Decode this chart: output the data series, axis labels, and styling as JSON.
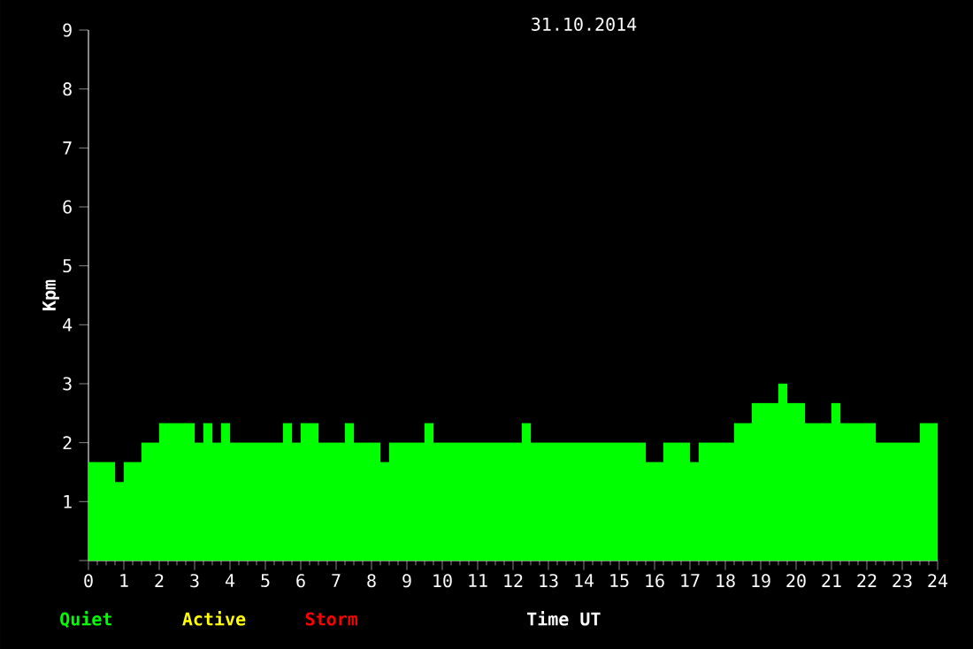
{
  "chart_data": {
    "type": "step",
    "title": "31.10.2014",
    "xlabel": "Time UT",
    "ylabel": "Kpm",
    "x": [
      0.125,
      0.375,
      0.625,
      0.875,
      1.125,
      1.375,
      1.625,
      1.875,
      2.125,
      2.375,
      2.625,
      2.875,
      3.125,
      3.375,
      3.625,
      3.875,
      4.125,
      4.375,
      4.625,
      4.875,
      5.125,
      5.375,
      5.625,
      5.875,
      6.125,
      6.375,
      6.625,
      6.875,
      7.125,
      7.375,
      7.625,
      7.875,
      8.125,
      8.375,
      8.625,
      8.875,
      9.125,
      9.375,
      9.625,
      9.875,
      10.125,
      10.375,
      10.625,
      10.875,
      11.125,
      11.375,
      11.625,
      11.875,
      12.125,
      12.375,
      12.625,
      12.875,
      13.125,
      13.375,
      13.625,
      13.875,
      14.125,
      14.375,
      14.625,
      14.875,
      15.125,
      15.375,
      15.625,
      15.875,
      16.125,
      16.375,
      16.625,
      16.875,
      17.125,
      17.375,
      17.625,
      17.875,
      18.125,
      18.375,
      18.625,
      18.875,
      19.125,
      19.375,
      19.625,
      19.875,
      20.125,
      20.375,
      20.625,
      20.875,
      21.125,
      21.375,
      21.625,
      21.875,
      22.125,
      22.375,
      22.625,
      22.875,
      23.125,
      23.375,
      23.625,
      23.875
    ],
    "series": [
      {
        "name": "Quiet",
        "type": "area",
        "color": "#00ff00",
        "values": [
          1.67,
          1.67,
          1.67,
          1.33,
          1.67,
          1.67,
          2,
          2,
          2.33,
          2.33,
          2.33,
          2.33,
          2,
          2.33,
          2,
          2.33,
          2,
          2,
          2,
          2,
          2,
          2,
          2.33,
          2,
          2.33,
          2.33,
          2,
          2,
          2,
          2.33,
          2,
          2,
          2,
          1.67,
          2,
          2,
          2,
          2,
          2.33,
          2,
          2,
          2,
          2,
          2,
          2,
          2,
          2,
          2,
          2,
          2.33,
          2,
          2,
          2,
          2,
          2,
          2,
          2,
          2,
          2,
          2,
          2,
          2,
          2,
          1.67,
          1.67,
          2,
          2,
          2,
          1.67,
          2,
          2,
          2,
          2,
          2.33,
          2.33,
          2.67,
          2.67,
          2.67,
          3,
          2.67,
          2.67,
          2.33,
          2.33,
          2.33,
          2.67,
          2.33,
          2.33,
          2.33,
          2.33,
          2,
          2,
          2,
          2,
          2,
          2.33,
          2.33
        ]
      },
      {
        "name": "Active",
        "color": "#ffff00",
        "values": [
          null,
          null,
          null,
          null,
          null,
          null,
          null,
          null,
          null,
          null,
          null,
          null,
          null,
          null,
          null,
          null,
          null,
          null,
          null,
          null,
          null,
          null,
          null,
          null,
          null,
          null,
          null,
          null,
          null,
          null,
          null,
          null,
          null,
          null,
          null,
          null,
          null,
          null,
          null,
          null,
          null,
          null,
          null,
          null,
          null,
          null,
          null,
          null,
          null,
          null,
          null,
          null,
          null,
          null,
          null,
          null,
          null,
          null,
          null,
          null,
          null,
          null,
          null,
          null,
          null,
          null,
          null,
          null,
          null,
          null,
          null,
          null,
          null,
          null,
          null,
          null,
          null,
          null,
          null,
          null,
          null,
          null,
          null,
          null,
          null,
          null,
          null,
          null,
          null,
          null,
          null,
          null,
          null,
          null,
          null,
          null
        ]
      },
      {
        "name": "Storm",
        "color": "#ff0000",
        "values": [
          null,
          null,
          null,
          null,
          null,
          null,
          null,
          null,
          null,
          null,
          null,
          null,
          null,
          null,
          null,
          null,
          null,
          null,
          null,
          null,
          null,
          null,
          null,
          null,
          null,
          null,
          null,
          null,
          null,
          null,
          null,
          null,
          null,
          null,
          null,
          null,
          null,
          null,
          null,
          null,
          null,
          null,
          null,
          null,
          null,
          null,
          null,
          null,
          null,
          null,
          null,
          null,
          null,
          null,
          null,
          null,
          null,
          null,
          null,
          null,
          null,
          null,
          null,
          null,
          null,
          null,
          null,
          null,
          null,
          null,
          null,
          null,
          null,
          null,
          null,
          null,
          null,
          null,
          null,
          null,
          null,
          null,
          null,
          null,
          null,
          null,
          null,
          null,
          null,
          null,
          null,
          null,
          null,
          null,
          null,
          null
        ]
      }
    ],
    "xlim": [
      0,
      24
    ],
    "xticks": [
      0,
      1,
      2,
      3,
      4,
      5,
      6,
      7,
      8,
      9,
      10,
      11,
      12,
      13,
      14,
      15,
      16,
      17,
      18,
      19,
      20,
      21,
      22,
      23,
      24
    ],
    "ylim": [
      0,
      9
    ],
    "yticks": [
      {
        "value": 0,
        "label": null
      },
      1,
      2,
      3,
      4,
      5,
      6,
      7,
      8,
      9
    ]
  }
}
